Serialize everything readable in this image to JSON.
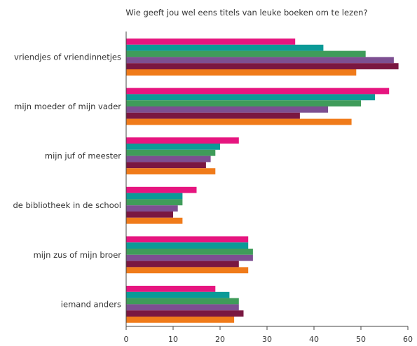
{
  "chart_data": {
    "type": "bar",
    "orientation": "horizontal",
    "title": "Wie geeft jou wel eens titels van leuke boeken om te lezen?",
    "xlabel": "",
    "ylabel": "",
    "xlim": [
      0,
      60
    ],
    "xticks": [
      0,
      10,
      20,
      30,
      40,
      50,
      60
    ],
    "grid": false,
    "legend": "none",
    "categories": [
      "vriendjes of vriendinnetjes",
      "mijn moeder of mijn vader",
      "mijn juf of meester",
      "de bibliotheek in de school",
      "mijn zus of mijn broer",
      "iemand anders"
    ],
    "series": [
      {
        "color": "#e6157f",
        "values": [
          36,
          56,
          24,
          15,
          26,
          19
        ]
      },
      {
        "color": "#0a9a97",
        "values": [
          42,
          53,
          20,
          12,
          26,
          22
        ]
      },
      {
        "color": "#3f9c5a",
        "values": [
          51,
          50,
          19,
          12,
          27,
          24
        ]
      },
      {
        "color": "#7d4f91",
        "values": [
          57,
          43,
          18,
          11,
          27,
          24
        ]
      },
      {
        "color": "#7a1741",
        "values": [
          58,
          37,
          17,
          10,
          24,
          25
        ]
      },
      {
        "color": "#f07b1a",
        "values": [
          49,
          48,
          19,
          12,
          26,
          23
        ]
      }
    ]
  }
}
